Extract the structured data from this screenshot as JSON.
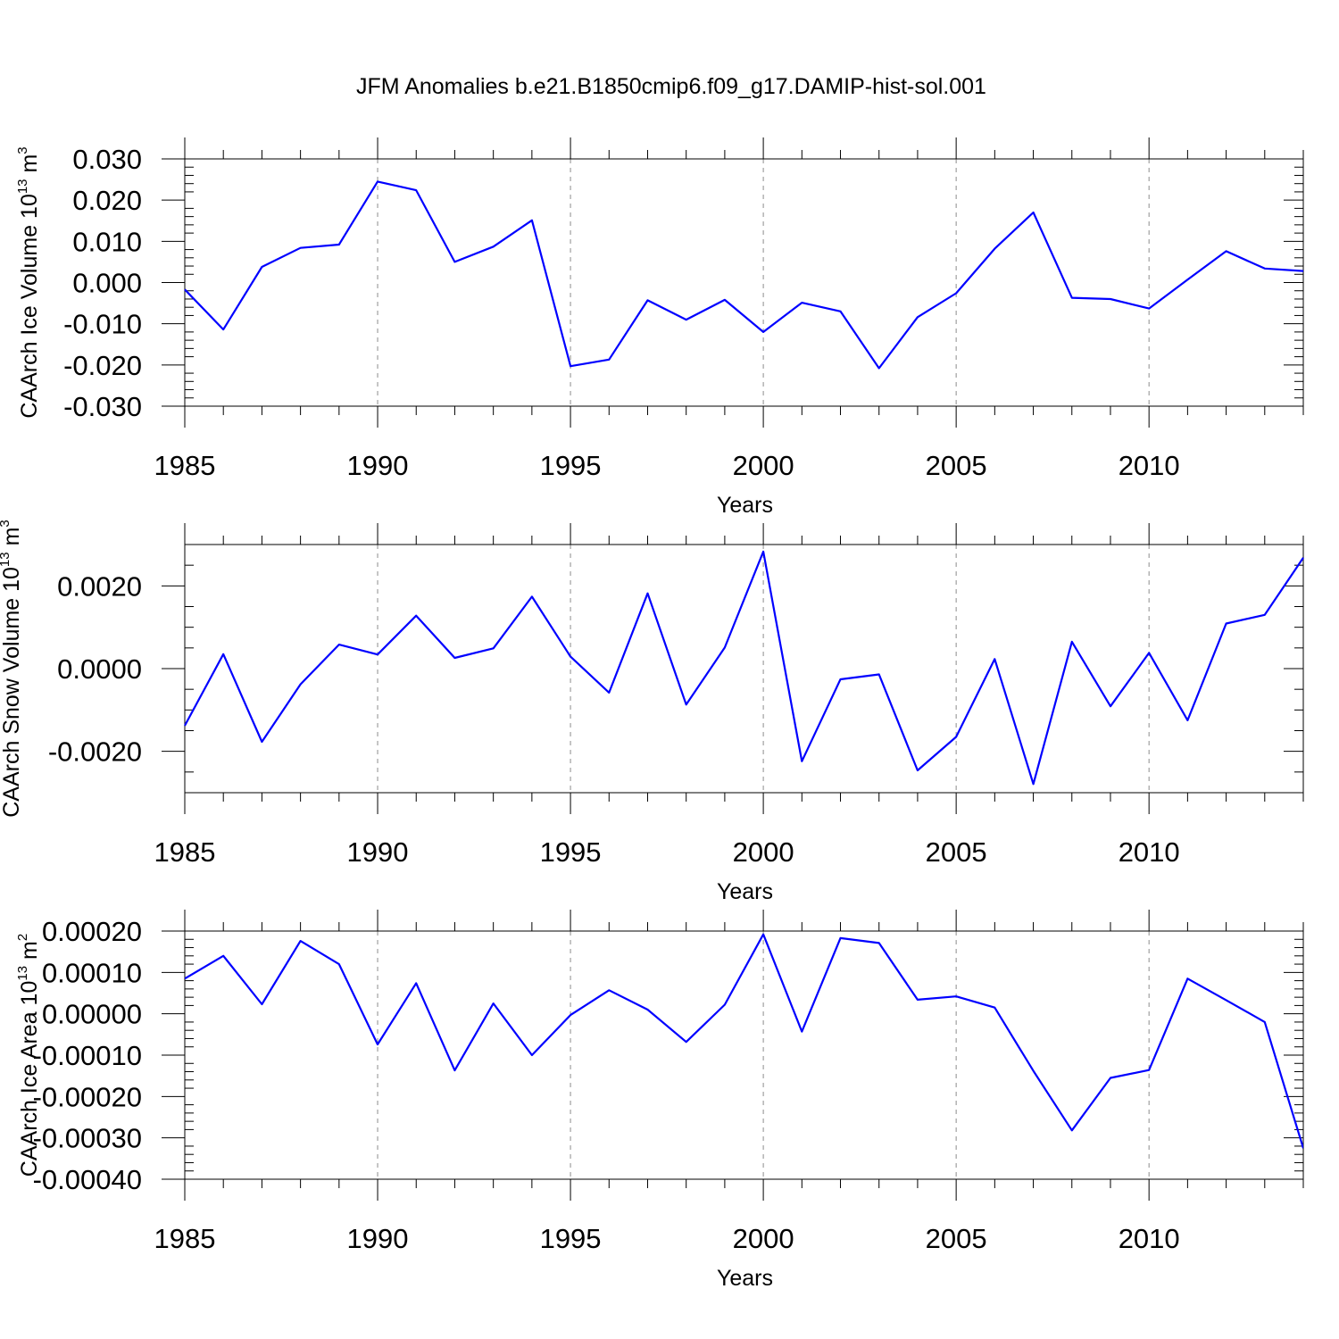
{
  "title": "JFM Anomalies b.e21.B1850cmip6.f09_g17.DAMIP-hist-sol.001",
  "chart_data": [
    {
      "type": "line",
      "ylabel": "CAArch Ice Volume 10",
      "ylabel_exp": "13",
      "ylabel_unit": " m",
      "ylabel_unit_exp": "3",
      "xlabel": "Years",
      "xlim": [
        1985,
        2014
      ],
      "ylim": [
        -0.03,
        0.03
      ],
      "yticks": [
        -0.03,
        -0.02,
        -0.01,
        0.0,
        0.01,
        0.02,
        0.03
      ],
      "ytick_labels": [
        "-0.030",
        "-0.020",
        "-0.010",
        "0.000",
        "0.010",
        "0.020",
        "0.030"
      ],
      "yminor_step": 0.002,
      "xticks": [
        1985,
        1990,
        1995,
        2000,
        2005,
        2010
      ],
      "xtick_labels": [
        "1985",
        "1990",
        "1995",
        "2000",
        "2005",
        "2010"
      ],
      "x": [
        1985,
        1986,
        1987,
        1988,
        1989,
        1990,
        1991,
        1992,
        1993,
        1994,
        1995,
        1996,
        1997,
        1998,
        1999,
        2000,
        2001,
        2002,
        2003,
        2004,
        2005,
        2006,
        2007,
        2008,
        2009,
        2010,
        2011,
        2012,
        2013,
        2014
      ],
      "series": [
        {
          "name": "CAArch Ice Volume",
          "color": "#0000ff",
          "values": [
            -0.0017,
            -0.0114,
            0.0038,
            0.0084,
            0.0092,
            0.0245,
            0.0224,
            0.005,
            0.0087,
            0.0151,
            -0.0203,
            -0.0187,
            -0.0043,
            -0.009,
            -0.0042,
            -0.012,
            -0.0049,
            -0.007,
            -0.0208,
            -0.0084,
            -0.0026,
            0.0082,
            0.017,
            -0.0037,
            -0.004,
            -0.0063,
            0.0007,
            0.0076,
            0.0034,
            0.0028
          ]
        }
      ]
    },
    {
      "type": "line",
      "ylabel": "CAArch Snow Volume 10",
      "ylabel_exp": "13",
      "ylabel_unit": " m",
      "ylabel_unit_exp": "3",
      "xlabel": "Years",
      "xlim": [
        1985,
        2014
      ],
      "ylim": [
        -0.003,
        0.003
      ],
      "yticks": [
        -0.002,
        0.0,
        0.002
      ],
      "ytick_labels": [
        "-0.0020",
        "0.0000",
        "0.0020"
      ],
      "yminor_step": 0.0005,
      "xticks": [
        1985,
        1990,
        1995,
        2000,
        2005,
        2010
      ],
      "xtick_labels": [
        "1985",
        "1990",
        "1995",
        "2000",
        "2005",
        "2010"
      ],
      "x": [
        1985,
        1986,
        1987,
        1988,
        1989,
        1990,
        1991,
        1992,
        1993,
        1994,
        1995,
        1996,
        1997,
        1998,
        1999,
        2000,
        2001,
        2002,
        2003,
        2004,
        2005,
        2006,
        2007,
        2008,
        2009,
        2010,
        2011,
        2012,
        2013,
        2014
      ],
      "series": [
        {
          "name": "CAArch Snow Volume",
          "color": "#0000ff",
          "values": [
            -0.00138,
            0.00035,
            -0.00177,
            -0.00038,
            0.00058,
            0.00034,
            0.00128,
            0.00026,
            0.00049,
            0.00174,
            0.00029,
            -0.00058,
            0.00182,
            -0.00087,
            0.00051,
            0.00283,
            -0.00224,
            -0.00026,
            -0.00014,
            -0.00246,
            -0.00165,
            0.00023,
            -0.00279,
            0.00065,
            -0.00091,
            0.00038,
            -0.00125,
            0.00109,
            0.0013,
            0.00268
          ]
        }
      ]
    },
    {
      "type": "line",
      "ylabel": "CAArch Ice Area 10",
      "ylabel_exp": "13",
      "ylabel_unit": " m",
      "ylabel_unit_exp": "2",
      "xlabel": "Years",
      "xlim": [
        1985,
        2014
      ],
      "ylim": [
        -0.0004,
        0.0002
      ],
      "yticks": [
        -0.0004,
        -0.0003,
        -0.0002,
        -0.0001,
        0.0,
        0.0001,
        0.0002
      ],
      "ytick_labels": [
        "-0.00040",
        "-0.00030",
        "-0.00020",
        "-0.00010",
        "0.00000",
        "0.00010",
        "0.00020"
      ],
      "yminor_step": 2e-05,
      "xticks": [
        1985,
        1990,
        1995,
        2000,
        2005,
        2010
      ],
      "xtick_labels": [
        "1985",
        "1990",
        "1995",
        "2000",
        "2005",
        "2010"
      ],
      "x": [
        1985,
        1986,
        1987,
        1988,
        1989,
        1990,
        1991,
        1992,
        1993,
        1994,
        1995,
        1996,
        1997,
        1998,
        1999,
        2000,
        2001,
        2002,
        2003,
        2004,
        2005,
        2006,
        2007,
        2008,
        2009,
        2010,
        2011,
        2012,
        2013,
        2014
      ],
      "series": [
        {
          "name": "CAArch Ice Area",
          "color": "#0000ff",
          "values": [
            8.5e-05,
            0.00014,
            2.3e-05,
            0.000176,
            0.00012,
            -7.4e-05,
            7.4e-05,
            -0.000137,
            2.5e-05,
            -0.0001,
            -3e-06,
            5.7e-05,
            1e-05,
            -6.8e-05,
            2.2e-05,
            0.000192,
            -4.3e-05,
            0.000183,
            0.000171,
            3.4e-05,
            4.2e-05,
            1.5e-05,
            -0.000138,
            -0.000282,
            -0.000155,
            -0.000136,
            8.5e-05,
            3.3e-05,
            -2e-05,
            -0.000325
          ]
        }
      ]
    }
  ]
}
